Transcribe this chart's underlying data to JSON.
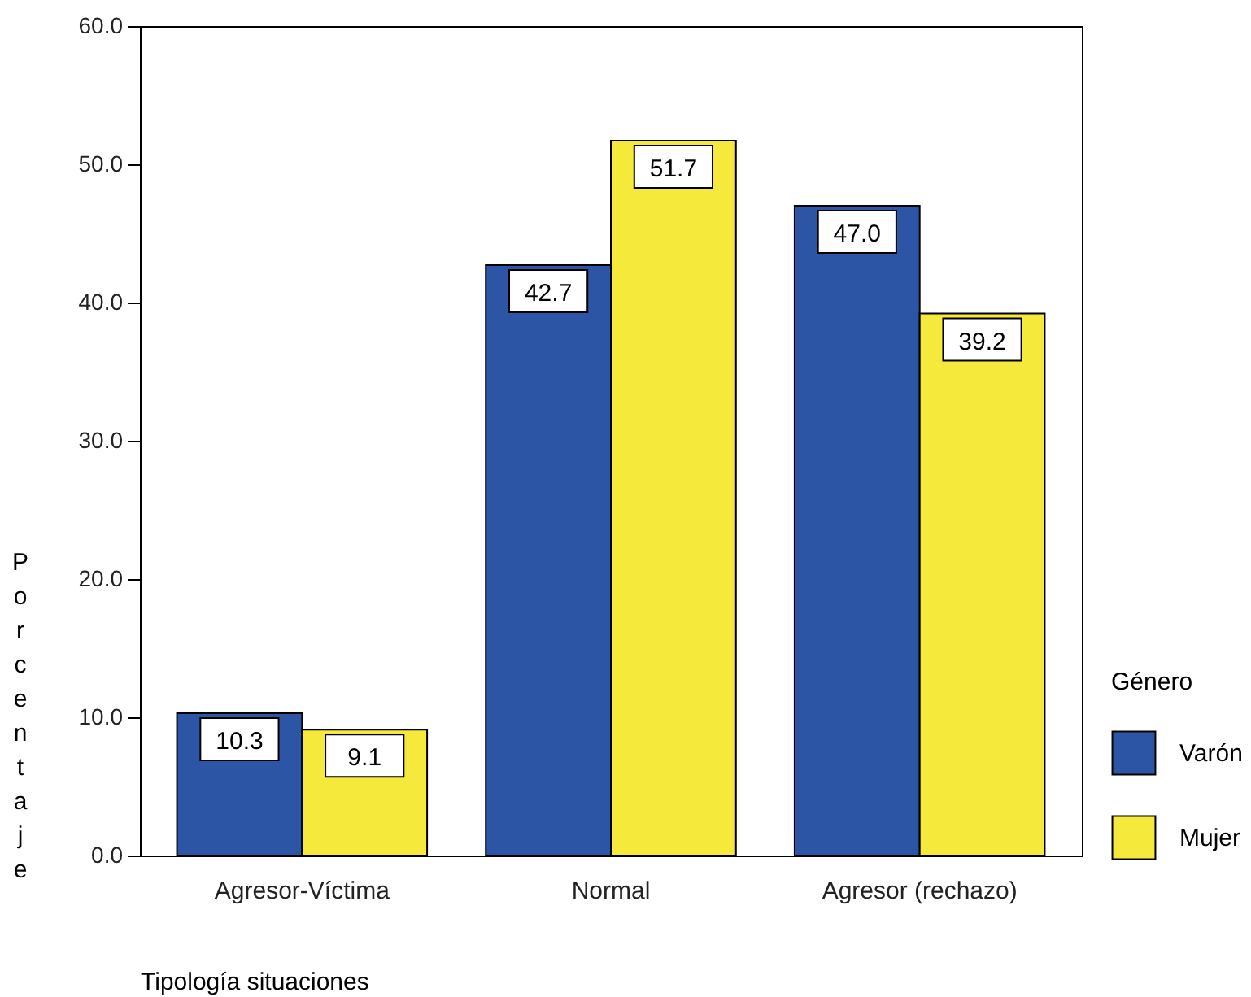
{
  "chart_data": {
    "type": "bar",
    "xlabel": "Tipología situaciones",
    "ylabel": "Porcentaje",
    "legend_title": "Género",
    "legend": "right",
    "categories": [
      "Agresor-Víctima",
      "Normal",
      "Agresor (rechazo)"
    ],
    "series": [
      {
        "name": "Varón",
        "color": "#2c55a5",
        "values": [
          10.3,
          42.7,
          47.0
        ],
        "value_labels": [
          "10.3",
          "42.7",
          "47.0"
        ]
      },
      {
        "name": "Mujer",
        "color": "#f5ea3c",
        "values": [
          9.1,
          51.7,
          39.2
        ],
        "value_labels": [
          "9.1",
          "51.7",
          "39.2"
        ]
      }
    ],
    "ylim": [
      0,
      60
    ],
    "yticks": [
      {
        "value": 0,
        "label": "0.0"
      },
      {
        "value": 10,
        "label": "10.0"
      },
      {
        "value": 20,
        "label": "20.0"
      },
      {
        "value": 30,
        "label": "30.0"
      },
      {
        "value": 40,
        "label": "40.0"
      },
      {
        "value": 50,
        "label": "50.0"
      },
      {
        "value": 60,
        "label": "60.0"
      }
    ]
  }
}
